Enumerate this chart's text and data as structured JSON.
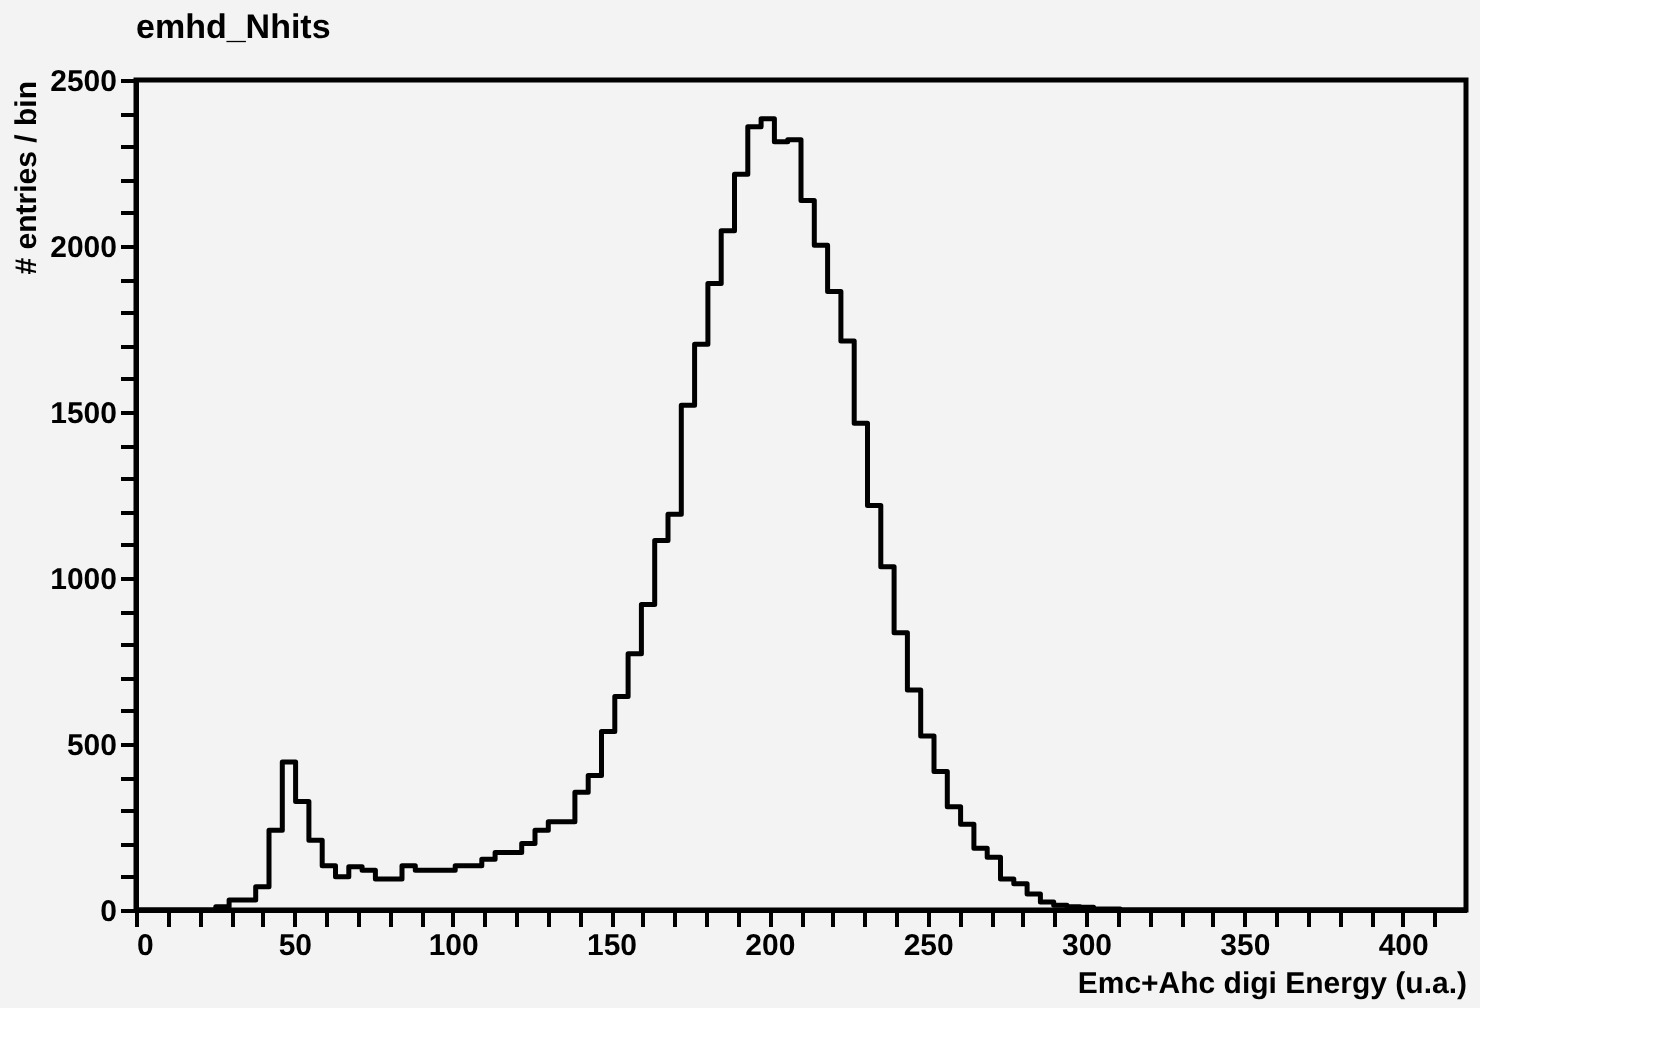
{
  "chart_data": {
    "type": "histogram",
    "title": "emhd_Nhits",
    "xlabel": "Emc+Ahc digi Energy (u.a.)",
    "ylabel": "# entries / bin",
    "bins": [
      0,
      4.2,
      8.4,
      12.6,
      16.8,
      21,
      25.2,
      29.4,
      33.6,
      37.8,
      42,
      46.2,
      50.4,
      54.6,
      58.8,
      63,
      67.2,
      71.4,
      75.6,
      79.8,
      84,
      88.2,
      92.4,
      96.6,
      100.8,
      105,
      109.2,
      113.4,
      117.6,
      121.8,
      126,
      130.2,
      134.4,
      138.6,
      142.8,
      147,
      151.2,
      155.4,
      159.6,
      163.8,
      168,
      172.2,
      176.4,
      180.6,
      184.8,
      189,
      193.2,
      197.4,
      201.6,
      205.8,
      210,
      214.2,
      218.4,
      222.6,
      226.8,
      231,
      235.2,
      239.4,
      243.6,
      247.8,
      252,
      256.2,
      260.4,
      264.6,
      268.8,
      273,
      277.2,
      281.4,
      285.6,
      289.8,
      294,
      298.2,
      302.4,
      306.6,
      310.8,
      315,
      319.2,
      323.4,
      327.6,
      331.8,
      336,
      340.2,
      344.4,
      348.6,
      352.8,
      357,
      361.2,
      365.4,
      369.6,
      373.8,
      378,
      382.2,
      386.4,
      390.6,
      394.8,
      399,
      403.2,
      407.4,
      411.6,
      415.8,
      420
    ],
    "values": [
      0,
      0,
      0,
      0,
      0,
      0,
      10,
      30,
      30,
      70,
      240,
      446,
      327,
      210,
      133,
      100,
      130,
      120,
      93,
      93,
      133,
      120,
      120,
      120,
      133,
      133,
      153,
      173,
      173,
      200,
      240,
      266,
      266,
      355,
      405,
      538,
      643,
      772,
      920,
      1113,
      1192,
      1520,
      1704,
      1887,
      2046,
      2216,
      2359,
      2383,
      2314,
      2320,
      2137,
      2002,
      1863,
      1714,
      1466,
      1218,
      1034,
      835,
      663,
      524,
      417,
      311,
      258,
      186,
      159,
      93,
      79,
      48,
      24,
      14,
      10,
      8,
      3,
      3,
      0,
      0,
      0,
      0,
      0,
      0,
      0,
      0,
      0,
      0,
      0,
      0,
      0,
      0,
      0,
      0,
      0,
      0,
      0,
      0,
      0,
      0,
      0,
      0,
      0,
      0
    ],
    "color": "#000000",
    "xlim": [
      0,
      420
    ],
    "ylim": [
      0,
      2500
    ],
    "xticks": [
      0,
      {
        "value": 10,
        "label": null
      },
      {
        "value": 20,
        "label": null
      },
      {
        "value": 30,
        "label": null
      },
      {
        "value": 40,
        "label": null
      },
      50,
      {
        "value": 60,
        "label": null
      },
      {
        "value": 70,
        "label": null
      },
      {
        "value": 80,
        "label": null
      },
      {
        "value": 90,
        "label": null
      },
      100,
      {
        "value": 110,
        "label": null
      },
      {
        "value": 120,
        "label": null
      },
      {
        "value": 130,
        "label": null
      },
      {
        "value": 140,
        "label": null
      },
      150,
      {
        "value": 160,
        "label": null
      },
      {
        "value": 170,
        "label": null
      },
      {
        "value": 180,
        "label": null
      },
      {
        "value": 190,
        "label": null
      },
      200,
      {
        "value": 210,
        "label": null
      },
      {
        "value": 220,
        "label": null
      },
      {
        "value": 230,
        "label": null
      },
      {
        "value": 240,
        "label": null
      },
      250,
      {
        "value": 260,
        "label": null
      },
      {
        "value": 270,
        "label": null
      },
      {
        "value": 280,
        "label": null
      },
      {
        "value": 290,
        "label": null
      },
      300,
      {
        "value": 310,
        "label": null
      },
      {
        "value": 320,
        "label": null
      },
      {
        "value": 330,
        "label": null
      },
      {
        "value": 340,
        "label": null
      },
      350,
      {
        "value": 360,
        "label": null
      },
      {
        "value": 370,
        "label": null
      },
      {
        "value": 380,
        "label": null
      },
      {
        "value": 390,
        "label": null
      },
      400,
      {
        "value": 410,
        "label": null
      }
    ],
    "yticks": [
      0,
      {
        "value": 100,
        "label": null
      },
      {
        "value": 200,
        "label": null
      },
      {
        "value": 300,
        "label": null
      },
      {
        "value": 400,
        "label": null
      },
      500,
      {
        "value": 600,
        "label": null
      },
      {
        "value": 700,
        "label": null
      },
      {
        "value": 800,
        "label": null
      },
      {
        "value": 900,
        "label": null
      },
      1000,
      {
        "value": 1100,
        "label": null
      },
      {
        "value": 1200,
        "label": null
      },
      {
        "value": 1300,
        "label": null
      },
      {
        "value": 1400,
        "label": null
      },
      1500,
      {
        "value": 1600,
        "label": null
      },
      {
        "value": 1700,
        "label": null
      },
      {
        "value": 1800,
        "label": null
      },
      {
        "value": 1900,
        "label": null
      },
      2000,
      {
        "value": 2100,
        "label": null
      },
      {
        "value": 2200,
        "label": null
      },
      {
        "value": 2300,
        "label": null
      },
      {
        "value": 2400,
        "label": null
      },
      2500
    ],
    "grid": false
  }
}
